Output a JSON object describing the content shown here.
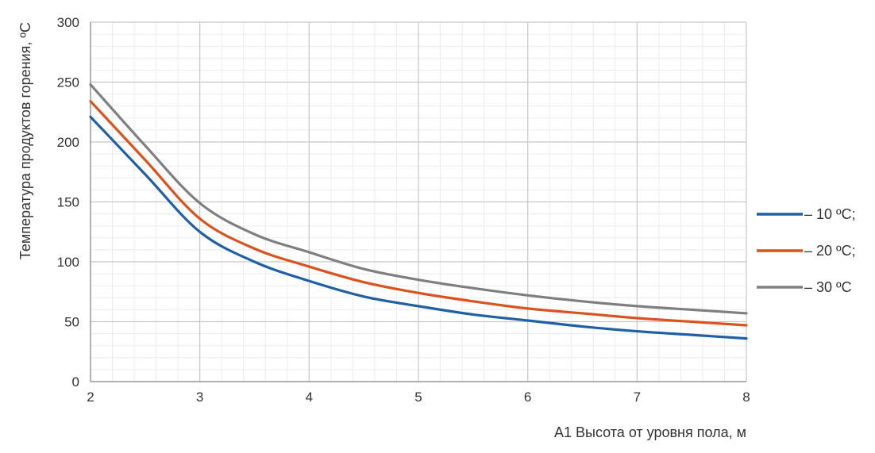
{
  "chart_data": {
    "type": "line",
    "xlabel": "A1 Высота от уровня пола, м",
    "ylabel": "Температура продуктов горения, ºС",
    "xlim": [
      2,
      8
    ],
    "ylim": [
      0,
      300
    ],
    "x_ticks": [
      "2",
      "3",
      "4",
      "5",
      "6",
      "7",
      "8"
    ],
    "y_ticks": [
      "0",
      "50",
      "100",
      "150",
      "200",
      "250",
      "300"
    ],
    "grid": true,
    "legend_position": "right",
    "series": [
      {
        "name": "– 10 ºС;",
        "color": "#1f5fa6",
        "x": [
          2,
          2.5,
          3,
          3.5,
          4,
          4.5,
          5,
          5.5,
          6,
          6.5,
          7,
          7.5,
          8
        ],
        "values": [
          221,
          173,
          125,
          100,
          84,
          71,
          63,
          56,
          51,
          46,
          42,
          39,
          36
        ]
      },
      {
        "name": "– 20 ºС;",
        "color": "#d9531e",
        "x": [
          2,
          2.5,
          3,
          3.5,
          4,
          4.5,
          5,
          5.5,
          6,
          6.5,
          7,
          7.5,
          8
        ],
        "values": [
          234,
          185,
          136,
          111,
          96,
          83,
          74,
          67,
          61,
          57,
          53,
          50,
          47
        ]
      },
      {
        "name": "– 30 ºС",
        "color": "#7f7f7f",
        "x": [
          2,
          2.5,
          3,
          3.5,
          4,
          4.5,
          5,
          5.5,
          6,
          6.5,
          7,
          7.5,
          8
        ],
        "values": [
          248,
          197,
          149,
          123,
          108,
          94,
          85,
          78,
          72,
          67,
          63,
          60,
          57
        ]
      }
    ]
  }
}
